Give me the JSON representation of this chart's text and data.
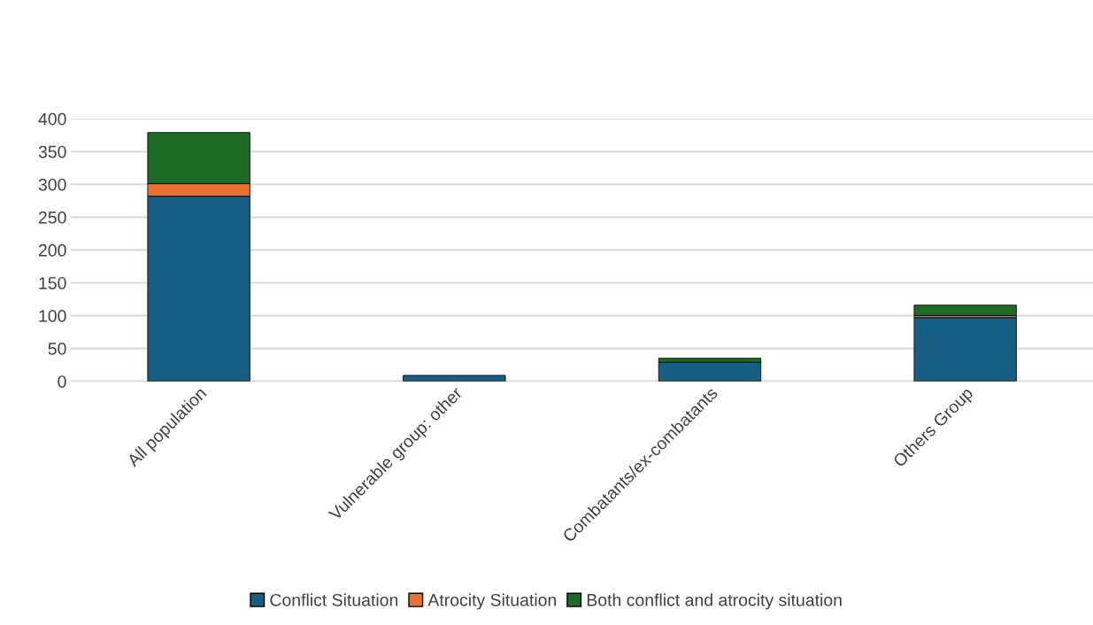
{
  "chart_data": {
    "type": "bar",
    "stacked": true,
    "categories": [
      "All population",
      "Vulnerable group: other",
      "Combatants/ex-combatants",
      "Others Group"
    ],
    "series": [
      {
        "name": "Conflict Situation",
        "color": "#165e83",
        "values": [
          282,
          9,
          29,
          97
        ]
      },
      {
        "name": "Atrocity Situation",
        "color": "#e97132",
        "values": [
          19,
          null,
          null,
          3
        ]
      },
      {
        "name": "Both conflict and atrocity situation",
        "color": "#1d6b25",
        "values": [
          78,
          null,
          6,
          16
        ]
      }
    ],
    "ylim": [
      0,
      400
    ],
    "yticks": [
      0,
      50,
      100,
      150,
      200,
      250,
      300,
      350,
      400
    ],
    "grid": "y",
    "legend": "bottom"
  }
}
